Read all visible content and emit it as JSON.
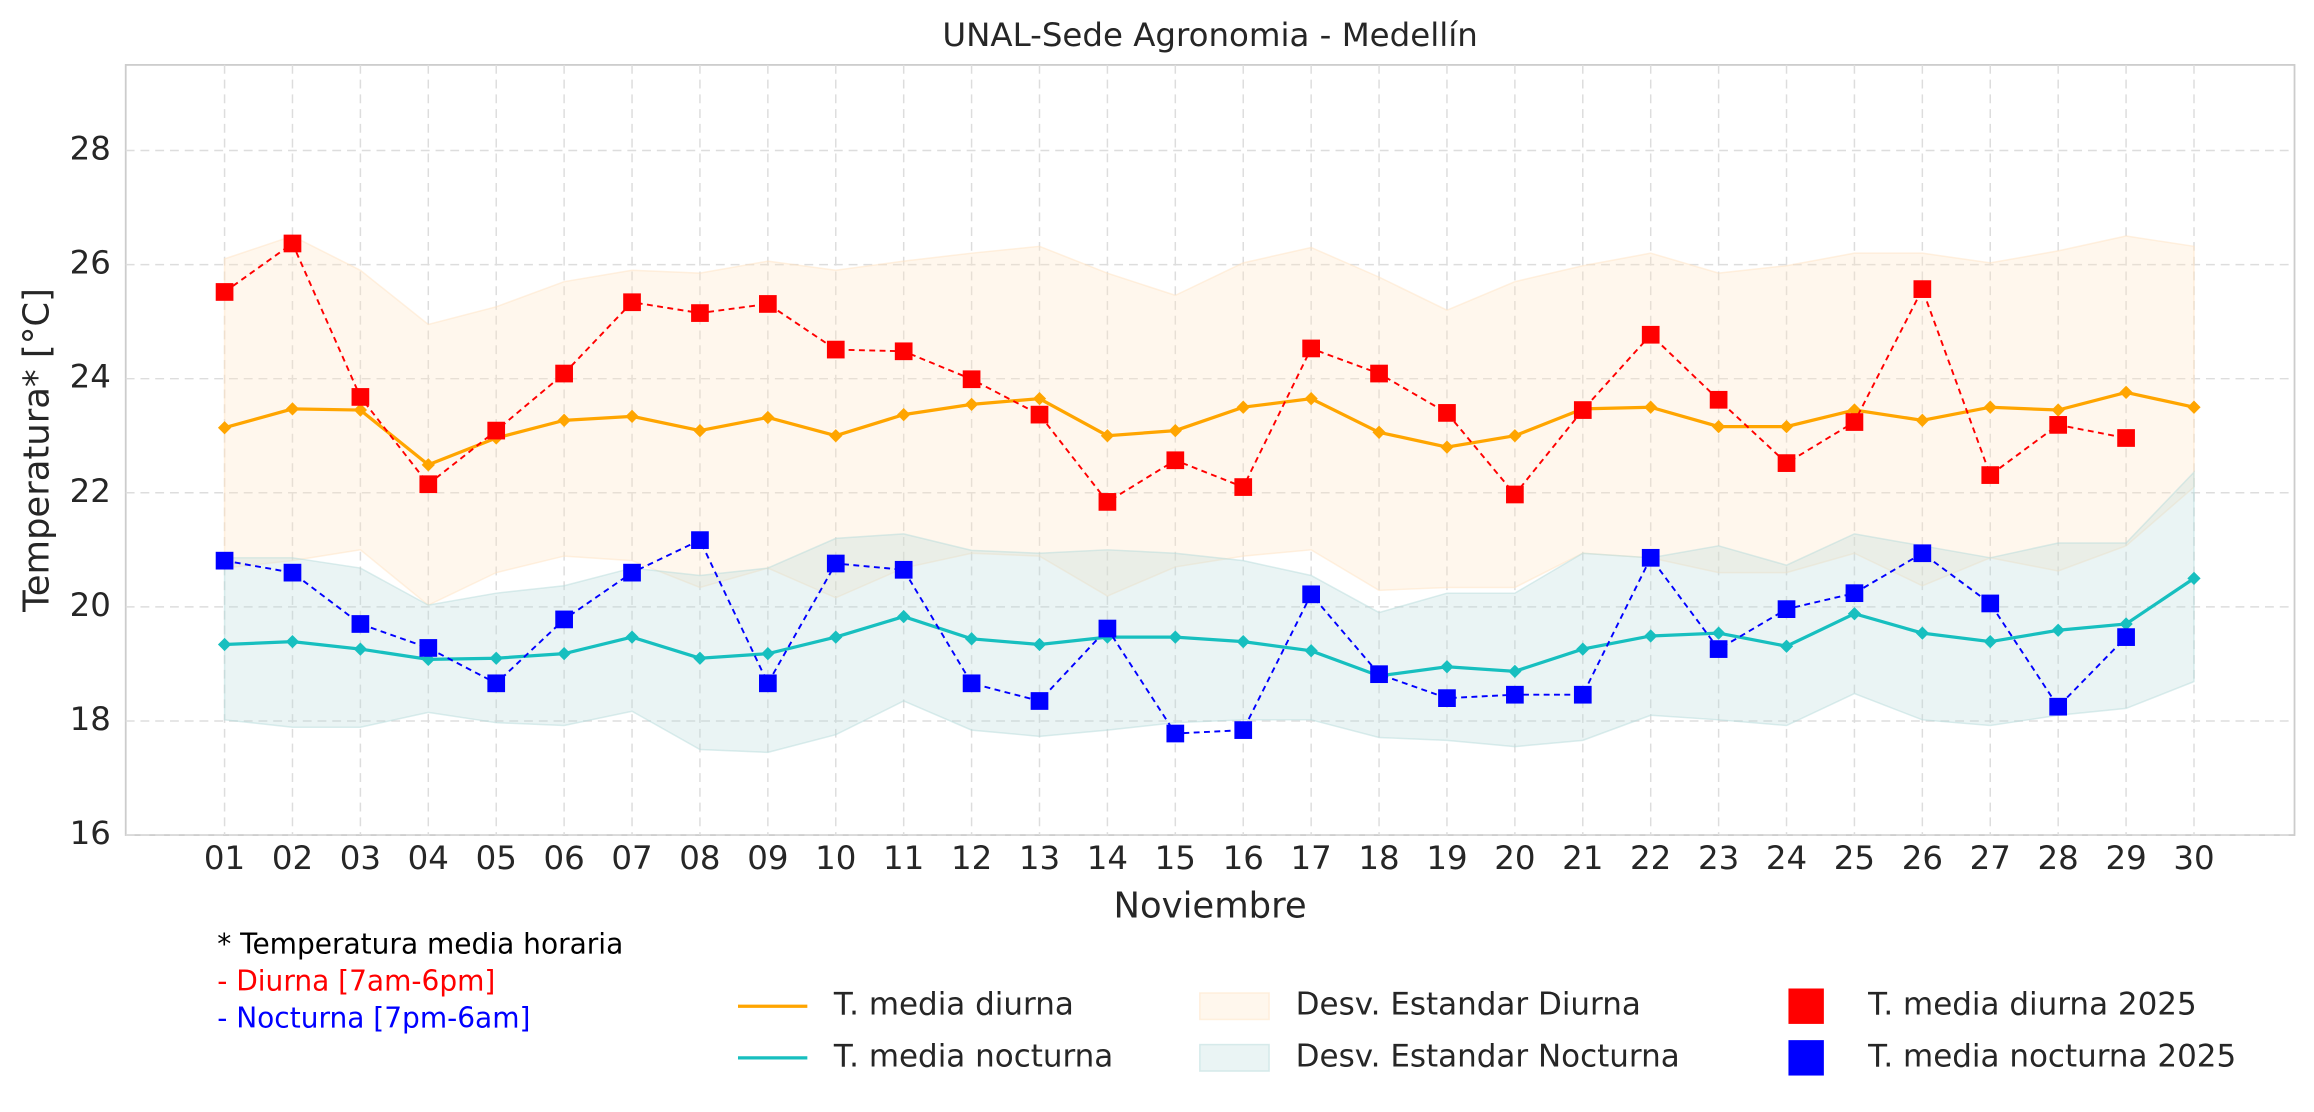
{
  "chart_data": {
    "type": "line",
    "title": "UNAL-Sede Agronomia - Medellín",
    "x_label": "Noviembre",
    "y_label": "Temperatura* [°C]",
    "notes": [
      "* Temperatura media horaria",
      "- Diurna [7am-6pm]",
      "- Nocturna [7pm-6am]"
    ],
    "note_colors": [
      "#000000",
      "#ff0000",
      "#0000ff"
    ],
    "categories": [
      "01",
      "02",
      "03",
      "04",
      "05",
      "06",
      "07",
      "08",
      "09",
      "10",
      "11",
      "12",
      "13",
      "14",
      "15",
      "16",
      "17",
      "18",
      "19",
      "20",
      "21",
      "22",
      "23",
      "24",
      "25",
      "26",
      "27",
      "28",
      "29",
      "30"
    ],
    "ylim": [
      16,
      29.5
    ],
    "yticks": [
      16,
      18,
      20,
      22,
      24,
      26,
      28
    ],
    "grid": true,
    "series": [
      {
        "name": "T. media diurna",
        "style": "line",
        "color": "#ffa500",
        "values": [
          23.14,
          23.47,
          23.45,
          22.49,
          22.96,
          23.27,
          23.34,
          23.09,
          23.32,
          23.0,
          23.37,
          23.55,
          23.65,
          23.0,
          23.09,
          23.5,
          23.65,
          23.06,
          22.8,
          23.0,
          23.47,
          23.5,
          23.16,
          23.16,
          23.45,
          23.27,
          23.5,
          23.45,
          23.76,
          23.5
        ]
      },
      {
        "name": "T. media nocturna",
        "style": "line",
        "color": "#17bfbf",
        "values": [
          19.34,
          19.39,
          19.26,
          19.08,
          19.1,
          19.18,
          19.47,
          19.1,
          19.18,
          19.47,
          19.83,
          19.44,
          19.34,
          19.47,
          19.47,
          19.39,
          19.23,
          18.79,
          18.95,
          18.87,
          19.26,
          19.49,
          19.54,
          19.31,
          19.88,
          19.54,
          19.39,
          19.59,
          19.7,
          20.5
        ]
      },
      {
        "name": "Desv. Estandar Diurna",
        "style": "band",
        "color": "#ffe4c4",
        "upper": [
          26.1,
          26.5,
          25.9,
          24.95,
          25.26,
          25.7,
          25.9,
          25.85,
          26.06,
          25.9,
          26.06,
          26.2,
          26.32,
          25.85,
          25.46,
          26.03,
          26.3,
          25.78,
          25.2,
          25.7,
          25.98,
          26.2,
          25.85,
          25.98,
          26.2,
          26.2,
          26.03,
          26.24,
          26.5,
          26.32
        ],
        "lower": [
          20.68,
          20.81,
          21.0,
          20.03,
          20.6,
          20.89,
          20.81,
          20.34,
          20.68,
          20.16,
          20.68,
          20.94,
          20.89,
          20.19,
          20.7,
          20.89,
          21.0,
          20.29,
          20.34,
          20.34,
          20.94,
          20.86,
          20.6,
          20.6,
          20.94,
          20.37,
          20.86,
          20.63,
          21.07,
          22.1
        ]
      },
      {
        "name": "Desv. Estandar Nocturna",
        "style": "band",
        "color": "#b8dcdc",
        "upper": [
          20.86,
          20.86,
          20.68,
          20.03,
          20.24,
          20.37,
          20.68,
          20.55,
          20.68,
          21.2,
          21.28,
          20.99,
          20.94,
          21.0,
          20.94,
          20.81,
          20.55,
          19.9,
          20.24,
          20.24,
          20.94,
          20.86,
          21.07,
          20.73,
          21.28,
          21.07,
          20.86,
          21.12,
          21.12,
          22.36
        ],
        "lower": [
          18.02,
          17.89,
          17.89,
          18.15,
          17.97,
          17.92,
          18.17,
          17.5,
          17.45,
          17.76,
          18.35,
          17.84,
          17.73,
          17.84,
          17.97,
          18.02,
          18.02,
          17.71,
          17.66,
          17.55,
          17.66,
          18.1,
          18.02,
          17.92,
          18.48,
          18.02,
          17.92,
          18.1,
          18.22,
          18.69
        ]
      },
      {
        "name": "T. media diurna 2025",
        "style": "markers",
        "color": "#ff0000",
        "values": [
          25.52,
          26.37,
          23.68,
          22.15,
          23.09,
          24.09,
          25.34,
          25.15,
          25.31,
          24.51,
          24.48,
          23.99,
          23.37,
          21.84,
          22.57,
          22.1,
          24.53,
          24.09,
          23.4,
          21.97,
          23.45,
          24.77,
          23.63,
          22.52,
          23.24,
          25.57,
          22.31,
          23.19,
          22.96,
          null
        ]
      },
      {
        "name": "T. media nocturna 2025",
        "style": "markers",
        "color": "#0000ff",
        "values": [
          20.81,
          20.6,
          19.7,
          19.28,
          18.66,
          19.78,
          20.6,
          21.17,
          18.66,
          20.76,
          20.65,
          18.66,
          18.35,
          19.62,
          17.78,
          17.84,
          20.22,
          18.82,
          18.4,
          18.46,
          18.46,
          20.86,
          19.26,
          19.96,
          20.24,
          20.94,
          20.06,
          18.25,
          19.47,
          null
        ]
      }
    ]
  }
}
